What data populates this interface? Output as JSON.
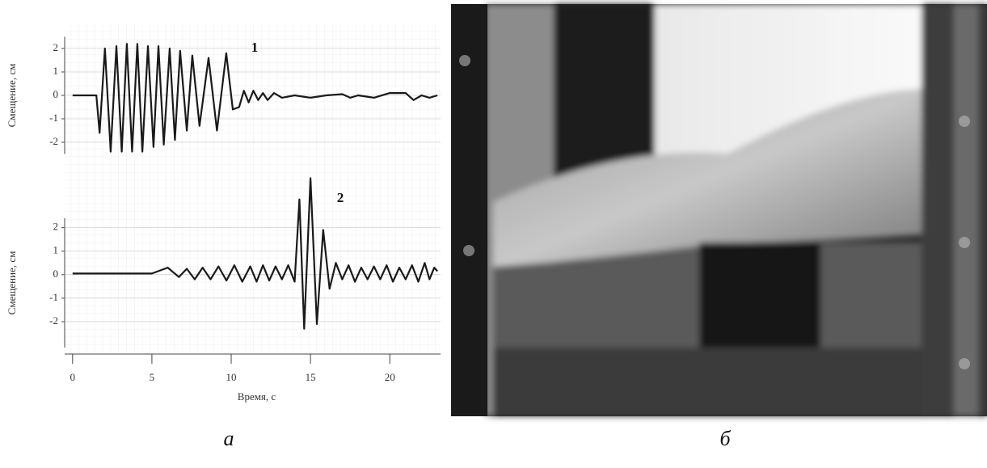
{
  "chart_data": [
    {
      "type": "line",
      "ylabel": "Смещение, см",
      "annotation": "1",
      "color": "#1a1a1a",
      "x": [
        0,
        1.5,
        1.7,
        2.04,
        2.4,
        2.76,
        3.1,
        3.42,
        3.75,
        4.08,
        4.4,
        4.75,
        5.1,
        5.41,
        5.75,
        6.12,
        6.45,
        6.78,
        7.2,
        7.55,
        8.0,
        8.57,
        9.1,
        9.69,
        10.1,
        10.5,
        10.8,
        11.1,
        11.4,
        11.7,
        12.0,
        12.3,
        12.7,
        13.2,
        14.0,
        15.0,
        16.0,
        17.0,
        17.5,
        18.0,
        19.0,
        20.0,
        21.0,
        21.5,
        22.0,
        22.5,
        23.0
      ],
      "values": [
        0,
        0,
        -1.6,
        2.0,
        -2.4,
        2.1,
        -2.4,
        2.2,
        -2.4,
        2.2,
        -2.4,
        2.1,
        -2.2,
        2.1,
        -2.1,
        2.0,
        -1.9,
        1.9,
        -1.5,
        1.7,
        -1.3,
        1.6,
        -1.5,
        1.8,
        -0.6,
        -0.5,
        0.2,
        -0.3,
        0.2,
        -0.2,
        0.1,
        -0.2,
        0.1,
        -0.1,
        0,
        -0.1,
        0,
        0.05,
        -0.1,
        0,
        -0.1,
        0.1,
        0.1,
        -0.2,
        0,
        -0.1,
        0
      ],
      "xlim": [
        -0.5,
        23.2
      ],
      "ylim": [
        -2.5,
        2.5
      ],
      "yticks": [
        -2,
        -1,
        0,
        1,
        2
      ]
    },
    {
      "type": "line",
      "ylabel": "Смещение, см",
      "xlabel": "Время, с",
      "annotation": "2",
      "color": "#1a1a1a",
      "x": [
        0,
        5.0,
        6.0,
        6.7,
        7.2,
        7.7,
        8.2,
        8.7,
        9.2,
        9.7,
        10.2,
        10.7,
        11.2,
        11.6,
        12.0,
        12.4,
        12.8,
        13.2,
        13.6,
        14.0,
        14.3,
        14.6,
        15.0,
        15.4,
        15.8,
        16.2,
        16.6,
        17.0,
        17.4,
        17.8,
        18.2,
        18.6,
        19.0,
        19.4,
        19.8,
        20.2,
        20.6,
        21.0,
        21.4,
        21.8,
        22.2,
        22.5,
        22.8,
        23.0
      ],
      "values": [
        0.05,
        0.05,
        0.3,
        -0.1,
        0.25,
        -0.2,
        0.3,
        -0.2,
        0.35,
        -0.25,
        0.4,
        -0.3,
        0.35,
        -0.3,
        0.4,
        -0.25,
        0.35,
        -0.2,
        0.4,
        -0.3,
        3.2,
        -2.3,
        4.1,
        -2.1,
        1.9,
        -0.6,
        0.5,
        -0.2,
        0.4,
        -0.3,
        0.3,
        -0.2,
        0.35,
        -0.2,
        0.4,
        -0.3,
        0.3,
        -0.2,
        0.4,
        -0.3,
        0.5,
        -0.2,
        0.3,
        0.15
      ],
      "xlim": [
        -0.5,
        23.2
      ],
      "ylim": [
        -3.1,
        2.4
      ],
      "yticks": [
        -2,
        -1,
        0,
        1,
        2
      ],
      "xticks": [
        0,
        5,
        10,
        15,
        20
      ]
    }
  ],
  "panel_labels": [
    "а",
    "б"
  ]
}
